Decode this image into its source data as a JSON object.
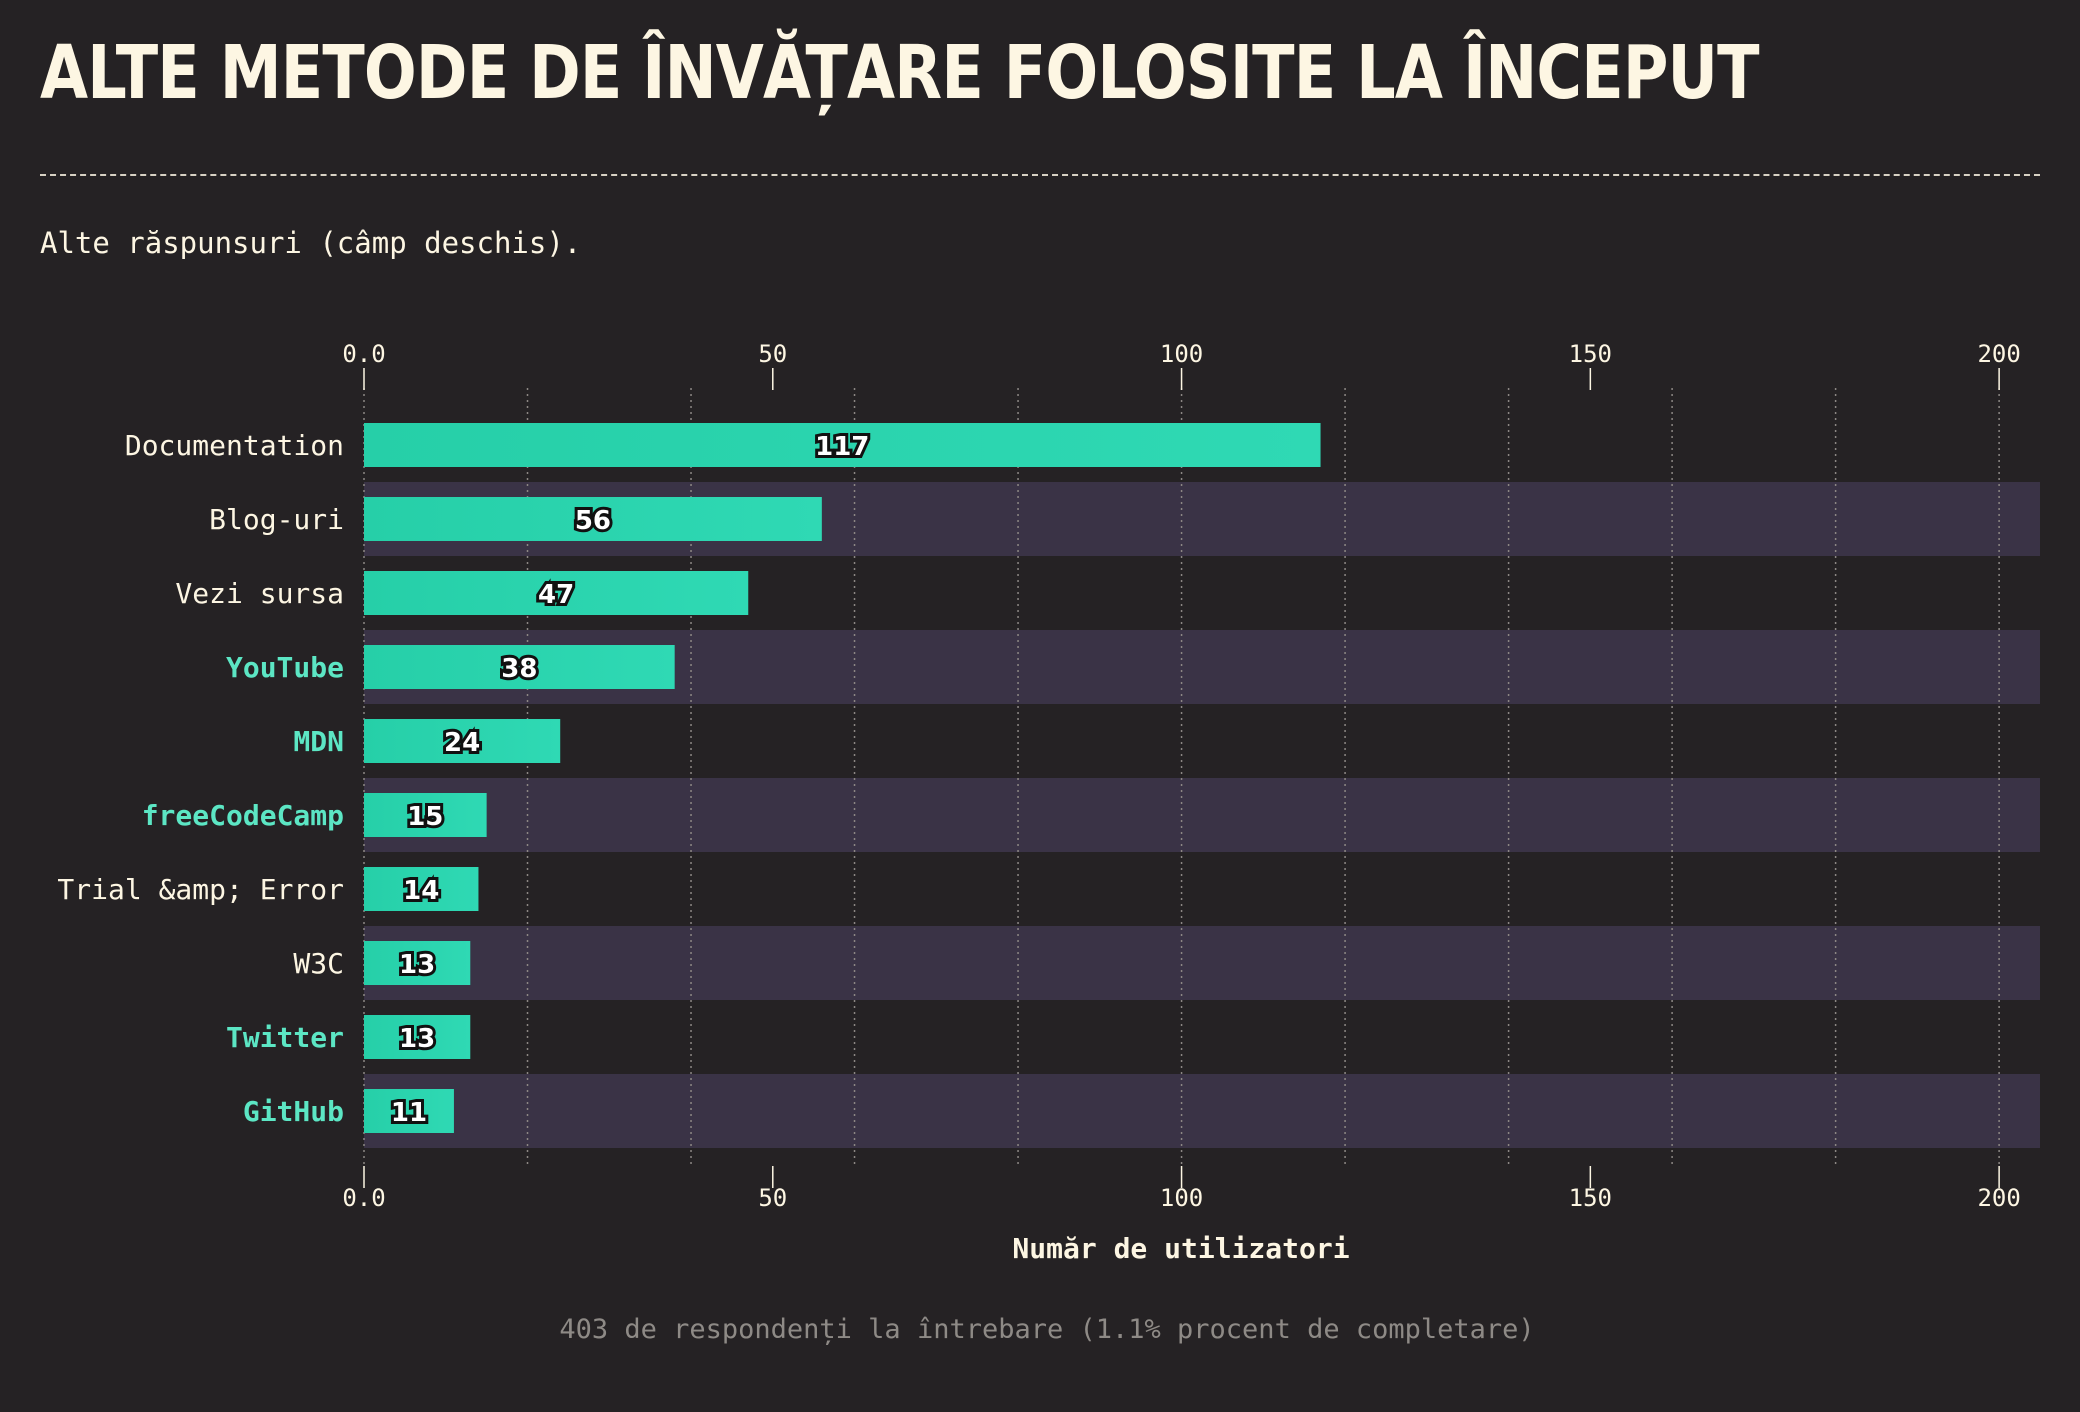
{
  "header": {
    "title": "ALTE METODE DE ÎNVĂȚARE FOLOSITE LA ÎNCEPUT",
    "subtitle": "Alte răspunsuri (câmp deschis)."
  },
  "footer": {
    "note": "403 de respondenți la întrebare (1.1% procent de completare)"
  },
  "colors": {
    "background": "#252224",
    "bar": "#2fd9b4",
    "band": "#3a3346",
    "highlight_label": "#5ce6c4",
    "text": "#fdf6e3"
  },
  "chart_data": {
    "type": "bar",
    "orientation": "horizontal",
    "xlabel": "Număr de utilizatori",
    "xlim": [
      0,
      205
    ],
    "xticks": [
      {
        "value": 0,
        "label": "0.0"
      },
      {
        "value": 50,
        "label": "50"
      },
      {
        "value": 100,
        "label": "100"
      },
      {
        "value": 150,
        "label": "150"
      },
      {
        "value": 200,
        "label": "200"
      }
    ],
    "grid": "vertical dotted, every 20",
    "categories": [
      "Documentation",
      "Blog-uri",
      "Vezi sursa",
      "YouTube",
      "MDN",
      "freeCodeCamp",
      "Trial &amp; Error",
      "W3C",
      "Twitter",
      "GitHub"
    ],
    "values": [
      117,
      56,
      47,
      38,
      24,
      15,
      14,
      13,
      13,
      11
    ],
    "highlighted": [
      false,
      false,
      false,
      true,
      true,
      true,
      false,
      false,
      true,
      true
    ]
  }
}
